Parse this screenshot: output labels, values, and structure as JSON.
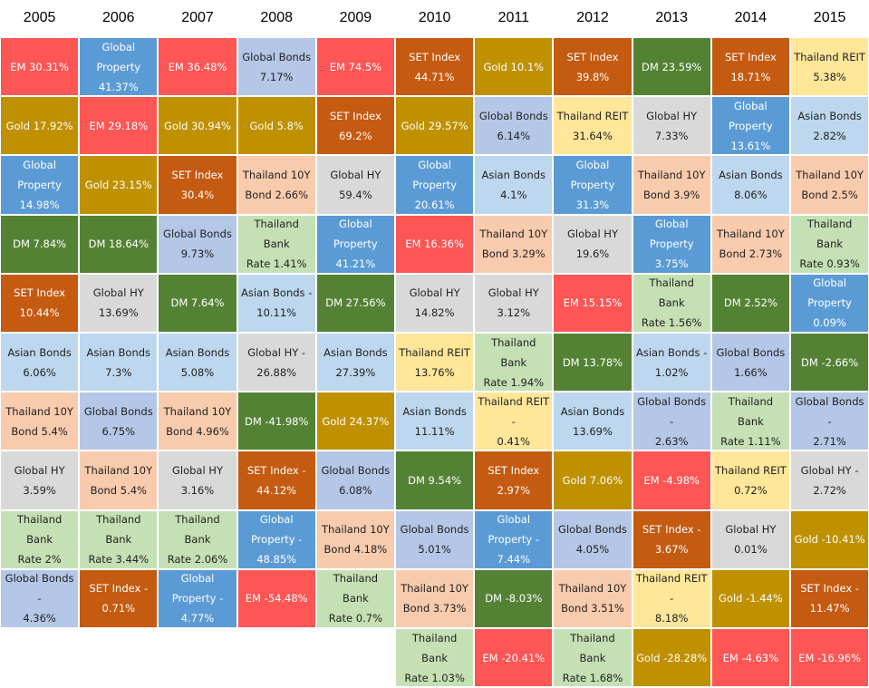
{
  "chart_data": {
    "type": "table",
    "years": [
      "2005",
      "2006",
      "2007",
      "2008",
      "2009",
      "2010",
      "2011",
      "2012",
      "2013",
      "2014",
      "2015"
    ],
    "colors": {
      "EM": "#fe5555",
      "Global Property": "#5b9bd5",
      "Global Bonds": "#b4c7e7",
      "Gold": "#bf9000",
      "SET Index": "#c55a11",
      "Thailand REIT": "#ffe699",
      "DM": "#548235",
      "Global HY": "#d9d9d9",
      "Asian Bonds": "#bdd7ee",
      "Thailand 10Y Bond": "#f8cbad",
      "Thailand Bank Rate": "#c5e0b4"
    },
    "columns": [
      [
        {
          "asset": "EM",
          "label": "EM   30.31%"
        },
        {
          "asset": "Gold",
          "label": "Gold  17.92%"
        },
        {
          "asset": "Global Property",
          "label": "Global\nProperty\n14.98%"
        },
        {
          "asset": "DM",
          "label": "DM  7.84%"
        },
        {
          "asset": "SET Index",
          "label": "SET Index\n10.44%"
        },
        {
          "asset": "Asian Bonds",
          "label": "Asian Bonds\n6.06%"
        },
        {
          "asset": "Thailand 10Y Bond",
          "label": "Thailand 10Y\nBond  5.4%"
        },
        {
          "asset": "Global HY",
          "label": "Global HY\n3.59%"
        },
        {
          "asset": "Thailand Bank Rate",
          "label": "Thailand Bank\nRate  2%"
        },
        {
          "asset": "Global Bonds",
          "label": "Global Bonds -\n4.36%"
        }
      ],
      [
        {
          "asset": "Global Property",
          "label": "Global\nProperty\n41.37%"
        },
        {
          "asset": "EM",
          "label": "EM  29.18%"
        },
        {
          "asset": "Gold",
          "label": "Gold 23.15%"
        },
        {
          "asset": "DM",
          "label": "DM 18.64%"
        },
        {
          "asset": "Global HY",
          "label": "Global HY\n13.69%"
        },
        {
          "asset": "Asian Bonds",
          "label": "Asian Bonds\n7.3%"
        },
        {
          "asset": "Global Bonds",
          "label": "Global Bonds\n6.75%"
        },
        {
          "asset": "Thailand 10Y Bond",
          "label": "Thailand 10Y\nBond 5.4%"
        },
        {
          "asset": "Thailand Bank Rate",
          "label": "Thailand Bank\nRate 3.44%"
        },
        {
          "asset": "SET Index",
          "label": "SET Index -\n0.71%"
        }
      ],
      [
        {
          "asset": "EM",
          "label": "EM  36.48%"
        },
        {
          "asset": "Gold",
          "label": "Gold 30.94%"
        },
        {
          "asset": "SET Index",
          "label": "SET Index\n30.4%"
        },
        {
          "asset": "Global Bonds",
          "label": "Global Bonds\n9.73%"
        },
        {
          "asset": "DM",
          "label": "DM  7.64%"
        },
        {
          "asset": "Asian Bonds",
          "label": "Asian Bonds\n5.08%"
        },
        {
          "asset": "Thailand 10Y Bond",
          "label": "Thailand 10Y\nBond 4.96%"
        },
        {
          "asset": "Global HY",
          "label": "Global HY\n3.16%"
        },
        {
          "asset": "Thailand Bank Rate",
          "label": "Thailand Bank\nRate 2.06%"
        },
        {
          "asset": "Global Property",
          "label": "Global\nProperty -\n4.77%"
        }
      ],
      [
        {
          "asset": "Global Bonds",
          "label": "Global Bonds\n7.17%"
        },
        {
          "asset": "Gold",
          "label": "Gold 5.8%"
        },
        {
          "asset": "Thailand 10Y Bond",
          "label": "Thailand 10Y\nBond 2.66%"
        },
        {
          "asset": "Thailand Bank Rate",
          "label": "Thailand Bank\nRate 1.41%"
        },
        {
          "asset": "Asian Bonds",
          "label": "Asian Bonds -\n10.11%"
        },
        {
          "asset": "Global HY",
          "label": "Global HY -\n26.88%"
        },
        {
          "asset": "DM",
          "label": "DM -41.98%"
        },
        {
          "asset": "SET Index",
          "label": "SET Index -\n44.12%"
        },
        {
          "asset": "Global Property",
          "label": "Global\nProperty -\n48.85%"
        },
        {
          "asset": "EM",
          "label": "EM  -54.48%"
        }
      ],
      [
        {
          "asset": "EM",
          "label": "EM  74.5%"
        },
        {
          "asset": "SET Index",
          "label": "SET Index\n69.2%"
        },
        {
          "asset": "Global HY",
          "label": "Global HY\n59.4%"
        },
        {
          "asset": "Global Property",
          "label": "Global\nProperty\n41.21%"
        },
        {
          "asset": "DM",
          "label": "DM 27.56%"
        },
        {
          "asset": "Asian Bonds",
          "label": "Asian Bonds\n27.39%"
        },
        {
          "asset": "Gold",
          "label": "Gold 24.37%"
        },
        {
          "asset": "Global Bonds",
          "label": "Global Bonds\n6.08%"
        },
        {
          "asset": "Thailand 10Y Bond",
          "label": "Thailand 10Y\nBond 4.18%"
        },
        {
          "asset": "Thailand Bank Rate",
          "label": "Thailand Bank\nRate 0.7%"
        }
      ],
      [
        {
          "asset": "SET Index",
          "label": "SET Index\n44.71%"
        },
        {
          "asset": "Gold",
          "label": "Gold 29.57%"
        },
        {
          "asset": "Global Property",
          "label": "Global\nProperty\n20.61%"
        },
        {
          "asset": "EM",
          "label": "EM  16.36%"
        },
        {
          "asset": "Global HY",
          "label": "Global HY\n14.82%"
        },
        {
          "asset": "Thailand REIT",
          "label": "Thailand REIT\n13.76%"
        },
        {
          "asset": "Asian Bonds",
          "label": "Asian Bonds\n11.11%"
        },
        {
          "asset": "DM",
          "label": "DM 9.54%"
        },
        {
          "asset": "Global Bonds",
          "label": "Global Bonds\n5.01%"
        },
        {
          "asset": "Thailand 10Y Bond",
          "label": "Thailand 10Y\nBond 3.73%"
        },
        {
          "asset": "Thailand Bank Rate",
          "label": "Thailand Bank\nRate 1.03%"
        }
      ],
      [
        {
          "asset": "Gold",
          "label": "Gold 10.1%"
        },
        {
          "asset": "Global Bonds",
          "label": "Global Bonds\n6.14%"
        },
        {
          "asset": "Asian Bonds",
          "label": "Asian Bonds\n4.1%"
        },
        {
          "asset": "Thailand 10Y Bond",
          "label": "Thailand 10Y\nBond 3.29%"
        },
        {
          "asset": "Global HY",
          "label": "Global HY\n3.12%"
        },
        {
          "asset": "Thailand Bank Rate",
          "label": "Thailand Bank\nRate 1.94%"
        },
        {
          "asset": "Thailand REIT",
          "label": "Thailand REIT -\n0.41%"
        },
        {
          "asset": "SET Index",
          "label": "SET Index\n2.97%"
        },
        {
          "asset": "Global Property",
          "label": "Global\nProperty -\n7.44%"
        },
        {
          "asset": "DM",
          "label": "DM -8.03%"
        },
        {
          "asset": "EM",
          "label": "EM  -20.41%"
        }
      ],
      [
        {
          "asset": "SET Index",
          "label": "SET Index\n39.8%"
        },
        {
          "asset": "Thailand REIT",
          "label": "Thailand REIT\n31.64%"
        },
        {
          "asset": "Global Property",
          "label": "Global\nProperty 31.3%"
        },
        {
          "asset": "Global HY",
          "label": "Global HY\n19.6%"
        },
        {
          "asset": "EM",
          "label": "EM  15.15%"
        },
        {
          "asset": "DM",
          "label": "DM 13.78%"
        },
        {
          "asset": "Asian Bonds",
          "label": "Asian Bonds\n13.69%"
        },
        {
          "asset": "Gold",
          "label": "Gold 7.06%"
        },
        {
          "asset": "Global Bonds",
          "label": "Global Bonds\n4.05%"
        },
        {
          "asset": "Thailand 10Y Bond",
          "label": "Thailand 10Y\nBond 3.51%"
        },
        {
          "asset": "Thailand Bank Rate",
          "label": "Thailand Bank\nRate 1.68%"
        }
      ],
      [
        {
          "asset": "DM",
          "label": "DM 23.59%"
        },
        {
          "asset": "Global HY",
          "label": "Global HY\n7.33%"
        },
        {
          "asset": "Thailand 10Y Bond",
          "label": "Thailand 10Y\nBond 3.9%"
        },
        {
          "asset": "Global Property",
          "label": "Global\nProperty 3.75%"
        },
        {
          "asset": "Thailand Bank Rate",
          "label": "Thailand Bank\nRate 1.56%"
        },
        {
          "asset": "Asian Bonds",
          "label": "Asian Bonds -\n1.02%"
        },
        {
          "asset": "Global Bonds",
          "label": "Global Bonds -\n2.63%"
        },
        {
          "asset": "EM",
          "label": "EM  -4.98%"
        },
        {
          "asset": "SET Index",
          "label": "SET Index -\n3.67%"
        },
        {
          "asset": "Thailand REIT",
          "label": "Thailand REIT -\n8.18%"
        },
        {
          "asset": "Gold",
          "label": "Gold -28.28%"
        }
      ],
      [
        {
          "asset": "SET Index",
          "label": "SET Index\n18.71%"
        },
        {
          "asset": "Global Property",
          "label": "Global\nProperty\n13.61%"
        },
        {
          "asset": "Asian Bonds",
          "label": "Asian Bonds\n8.06%"
        },
        {
          "asset": "Thailand 10Y Bond",
          "label": "Thailand 10Y\nBond 2.73%"
        },
        {
          "asset": "DM",
          "label": "DM 2.52%"
        },
        {
          "asset": "Global Bonds",
          "label": "Global Bonds\n1.66%"
        },
        {
          "asset": "Thailand Bank Rate",
          "label": "Thailand Bank\nRate 1.11%"
        },
        {
          "asset": "Thailand REIT",
          "label": "Thailand REIT\n0.72%"
        },
        {
          "asset": "Global HY",
          "label": "Global HY\n0.01%"
        },
        {
          "asset": "Gold",
          "label": "Gold -1.44%"
        },
        {
          "asset": "EM",
          "label": "EM  -4.63%"
        }
      ],
      [
        {
          "asset": "Thailand REIT",
          "label": "Thailand REIT\n5.38%"
        },
        {
          "asset": "Asian Bonds",
          "label": "Asian Bonds\n2.82%"
        },
        {
          "asset": "Thailand 10Y Bond",
          "label": "Thailand 10Y\nBond 2.5%"
        },
        {
          "asset": "Thailand Bank Rate",
          "label": "Thailand Bank\nRate 0.93%"
        },
        {
          "asset": "Global Property",
          "label": "Global\nProperty 0.09%"
        },
        {
          "asset": "DM",
          "label": "DM -2.66%"
        },
        {
          "asset": "Global Bonds",
          "label": "Global Bonds -\n2.71%"
        },
        {
          "asset": "Global HY",
          "label": "Global HY -\n2.72%"
        },
        {
          "asset": "Gold",
          "label": "Gold -10.41%"
        },
        {
          "asset": "SET Index",
          "label": "SET Index -\n11.47%"
        },
        {
          "asset": "EM",
          "label": "EM  -16.96%"
        }
      ]
    ]
  }
}
